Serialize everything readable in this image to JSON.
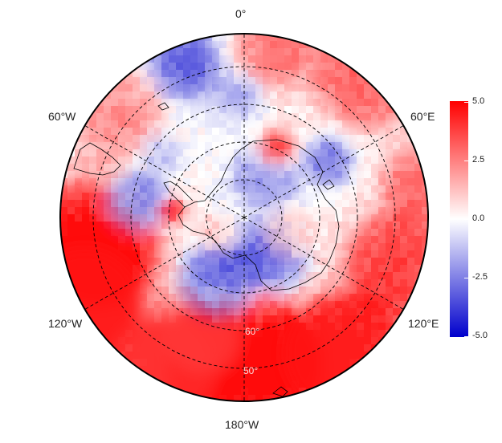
{
  "map": {
    "projection": "south-polar-stereographic",
    "background": "#ffffff",
    "field_range": [
      -5.0,
      5.0
    ]
  },
  "longitude_labels": {
    "top": "0°",
    "upper_left": "60°W",
    "upper_right": "60°E",
    "lower_left": "120°W",
    "lower_right": "120°E",
    "bottom": "180°W"
  },
  "latitude_labels": {
    "lat60": "60°",
    "lat50": "50°"
  },
  "colorbar": {
    "ticks": [
      "5.0",
      "2.5",
      "0.0",
      "-2.5",
      "-5.0"
    ],
    "colors": {
      "high": "#ff0000",
      "mid": "#ffffff",
      "low": "#0000cc"
    }
  }
}
